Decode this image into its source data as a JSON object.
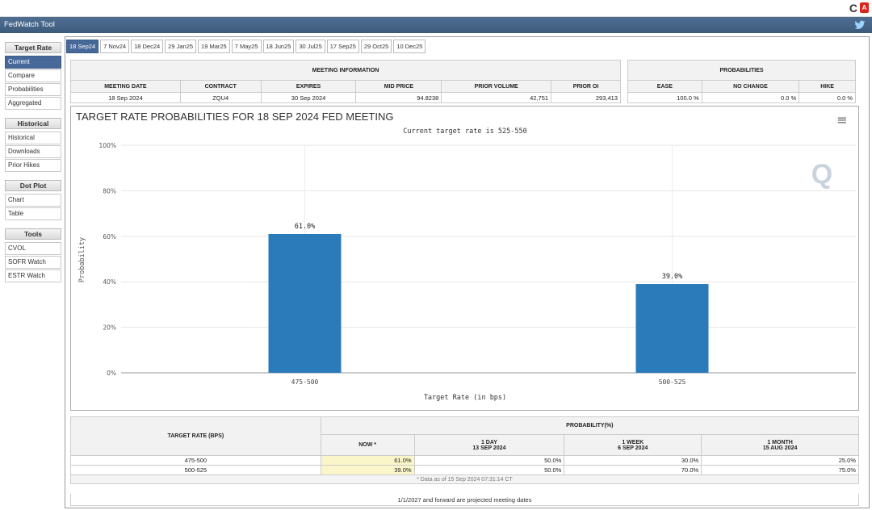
{
  "app": {
    "title": "FedWatch Tool",
    "reload_glyph": "C",
    "pdf_label": "A"
  },
  "sidebar": {
    "sections": [
      {
        "title": "Target Rate",
        "items": [
          {
            "label": "Current",
            "active": true
          },
          {
            "label": "Compare",
            "active": false
          },
          {
            "label": "Probabilities",
            "active": false
          },
          {
            "label": "Aggregated",
            "active": false
          }
        ]
      },
      {
        "title": "Historical",
        "items": [
          {
            "label": "Historical",
            "active": false
          },
          {
            "label": "Downloads",
            "active": false
          },
          {
            "label": "Prior Hikes",
            "active": false
          }
        ]
      },
      {
        "title": "Dot Plot",
        "items": [
          {
            "label": "Chart",
            "active": false
          },
          {
            "label": "Table",
            "active": false
          }
        ]
      },
      {
        "title": "Tools",
        "items": [
          {
            "label": "CVOL",
            "active": false
          },
          {
            "label": "SOFR Watch",
            "active": false
          },
          {
            "label": "ESTR Watch",
            "active": false
          }
        ]
      }
    ]
  },
  "tabs": [
    "18 Sep24",
    "7 Nov24",
    "18 Dec24",
    "29 Jan25",
    "19 Mar25",
    "7 May25",
    "18 Jun25",
    "30 Jul25",
    "17 Sep25",
    "29 Oct25",
    "10 Dec25"
  ],
  "meeting_info": {
    "caption": "MEETING INFORMATION",
    "headers": [
      "MEETING DATE",
      "CONTRACT",
      "EXPIRES",
      "MID PRICE",
      "PRIOR VOLUME",
      "PRIOR OI"
    ],
    "row": [
      "18 Sep 2024",
      "ZQU4",
      "30 Sep 2024",
      "94.8238",
      "42,751",
      "293,413"
    ]
  },
  "probabilities": {
    "caption": "PROBABILITIES",
    "headers": [
      "EASE",
      "NO CHANGE",
      "HIKE"
    ],
    "row": [
      "100.0 %",
      "0.0 %",
      "0.0 %"
    ]
  },
  "chart_data": {
    "type": "bar",
    "title": "TARGET RATE PROBABILITIES FOR 18 SEP 2024 FED MEETING",
    "subtitle": "Current target rate is 525-550",
    "categories": [
      "475-500",
      "500-525"
    ],
    "values": [
      61.0,
      39.0
    ],
    "data_labels": [
      "61.0%",
      "39.0%"
    ],
    "xlabel": "Target Rate (in bps)",
    "ylabel": "Probability",
    "ylim": [
      0,
      100
    ],
    "yticks": [
      "0%",
      "20%",
      "40%",
      "60%",
      "80%",
      "100%"
    ],
    "grid": true,
    "color": "#2b7bba"
  },
  "chart_ui": {
    "menu_glyph": "≡",
    "watermark": "Q"
  },
  "prob_table": {
    "col1_header": "TARGET RATE (BPS)",
    "group_header": "PROBABILITY(%)",
    "subheaders": [
      {
        "line1": "NOW *",
        "line2": ""
      },
      {
        "line1": "1 DAY",
        "line2": "13 SEP 2024"
      },
      {
        "line1": "1 WEEK",
        "line2": "6 SEP 2024"
      },
      {
        "line1": "1 MONTH",
        "line2": "15 AUG 2024"
      }
    ],
    "rows": [
      {
        "rate": "475-500",
        "now": "61.0%",
        "day": "50.0%",
        "week": "30.0%",
        "month": "25.0%"
      },
      {
        "rate": "500-525",
        "now": "39.0%",
        "day": "50.0%",
        "week": "70.0%",
        "month": "75.0%"
      }
    ],
    "note": "* Data as of 15 Sep 2024 07:31:14 CT"
  },
  "footer": "1/1/2027 and forward are projected meeting dates"
}
